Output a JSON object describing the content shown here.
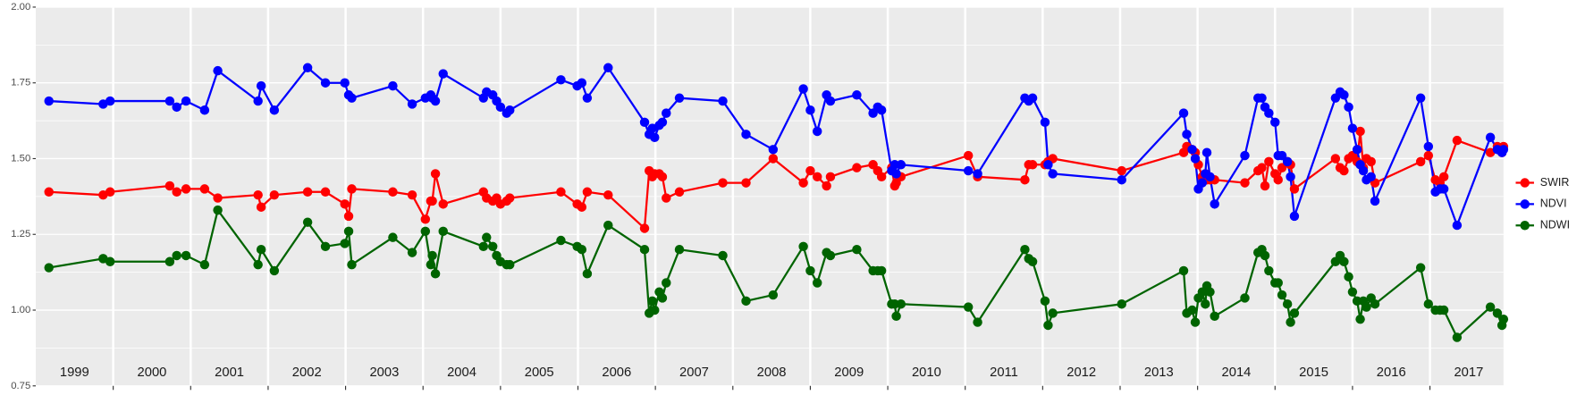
{
  "chart_data": {
    "type": "line",
    "x": [
      1999.17,
      1999.87,
      1999.96,
      2000.73,
      2000.82,
      2000.94,
      2001.18,
      2001.35,
      2001.87,
      2001.91,
      2002.08,
      2002.51,
      2002.74,
      2002.99,
      2003.04,
      2003.08,
      2003.61,
      2003.86,
      2004.03,
      2004.1,
      2004.12,
      2004.16,
      2004.26,
      2004.78,
      2004.82,
      2004.9,
      2004.95,
      2005.0,
      2005.08,
      2005.12,
      2005.78,
      2005.99,
      2006.05,
      2006.12,
      2006.39,
      2006.86,
      2006.92,
      2006.96,
      2006.99,
      2007.05,
      2007.09,
      2007.14,
      2007.31,
      2007.87,
      2008.17,
      2008.52,
      2008.91,
      2009.0,
      2009.09,
      2009.21,
      2009.26,
      2009.6,
      2009.81,
      2009.87,
      2009.92,
      2010.05,
      2010.09,
      2010.11,
      2010.17,
      2011.04,
      2011.16,
      2011.77,
      2011.82,
      2011.87,
      2012.03,
      2012.07,
      2012.13,
      2013.02,
      2013.82,
      2013.86,
      2013.93,
      2013.97,
      2014.01,
      2014.06,
      2014.1,
      2014.12,
      2014.16,
      2014.22,
      2014.61,
      2014.78,
      2014.83,
      2014.87,
      2014.92,
      2015.0,
      2015.04,
      2015.09,
      2015.16,
      2015.2,
      2015.25,
      2015.78,
      2015.84,
      2015.89,
      2015.95,
      2016.0,
      2016.06,
      2016.1,
      2016.14,
      2016.18,
      2016.24,
      2016.29,
      2016.88,
      2016.98,
      2017.07,
      2017.13,
      2017.18,
      2017.35,
      2017.78,
      2017.87,
      2017.93,
      2017.95
    ],
    "series": [
      {
        "name": "SWIR",
        "color": "#ff0000",
        "values": [
          1.39,
          1.38,
          1.39,
          1.41,
          1.39,
          1.4,
          1.4,
          1.37,
          1.38,
          1.34,
          1.38,
          1.39,
          1.39,
          1.35,
          1.31,
          1.4,
          1.39,
          1.38,
          1.3,
          1.36,
          1.36,
          1.45,
          1.35,
          1.39,
          1.37,
          1.36,
          1.37,
          1.35,
          1.36,
          1.37,
          1.39,
          1.35,
          1.34,
          1.39,
          1.38,
          1.27,
          1.46,
          1.44,
          1.45,
          1.45,
          1.44,
          1.37,
          1.39,
          1.42,
          1.42,
          1.5,
          1.42,
          1.46,
          1.44,
          1.41,
          1.44,
          1.47,
          1.48,
          1.46,
          1.44,
          1.47,
          1.41,
          1.42,
          1.44,
          1.51,
          1.44,
          1.43,
          1.48,
          1.48,
          1.48,
          1.49,
          1.5,
          1.46,
          1.52,
          1.54,
          1.53,
          1.52,
          1.48,
          1.44,
          1.45,
          1.43,
          1.43,
          1.43,
          1.42,
          1.46,
          1.47,
          1.41,
          1.49,
          1.45,
          1.43,
          1.47,
          1.49,
          1.48,
          1.4,
          1.5,
          1.47,
          1.46,
          1.5,
          1.51,
          1.49,
          1.59,
          1.47,
          1.5,
          1.49,
          1.42,
          1.49,
          1.51,
          1.43,
          1.42,
          1.44,
          1.56,
          1.52,
          1.54,
          1.52,
          1.54
        ]
      },
      {
        "name": "NDVI",
        "color": "#0000ff",
        "values": [
          1.69,
          1.68,
          1.69,
          1.69,
          1.67,
          1.69,
          1.66,
          1.79,
          1.69,
          1.74,
          1.66,
          1.8,
          1.75,
          1.75,
          1.71,
          1.7,
          1.74,
          1.68,
          1.7,
          1.71,
          1.7,
          1.69,
          1.78,
          1.7,
          1.72,
          1.71,
          1.69,
          1.67,
          1.65,
          1.66,
          1.76,
          1.74,
          1.75,
          1.7,
          1.8,
          1.62,
          1.58,
          1.6,
          1.57,
          1.61,
          1.62,
          1.65,
          1.7,
          1.69,
          1.58,
          1.53,
          1.73,
          1.66,
          1.59,
          1.71,
          1.69,
          1.71,
          1.65,
          1.67,
          1.66,
          1.46,
          1.48,
          1.45,
          1.48,
          1.46,
          1.45,
          1.7,
          1.69,
          1.7,
          1.62,
          1.48,
          1.45,
          1.43,
          1.65,
          1.58,
          1.53,
          1.5,
          1.4,
          1.42,
          1.45,
          1.52,
          1.44,
          1.35,
          1.51,
          1.7,
          1.7,
          1.67,
          1.65,
          1.62,
          1.51,
          1.51,
          1.49,
          1.44,
          1.31,
          1.7,
          1.72,
          1.71,
          1.67,
          1.6,
          1.53,
          1.48,
          1.46,
          1.43,
          1.44,
          1.36,
          1.7,
          1.54,
          1.39,
          1.4,
          1.4,
          1.28,
          1.57,
          1.53,
          1.52,
          1.53
        ]
      },
      {
        "name": "NDWI",
        "color": "#006400",
        "values": [
          1.14,
          1.17,
          1.16,
          1.16,
          1.18,
          1.18,
          1.15,
          1.33,
          1.15,
          1.2,
          1.13,
          1.29,
          1.21,
          1.22,
          1.26,
          1.15,
          1.24,
          1.19,
          1.26,
          1.15,
          1.18,
          1.12,
          1.26,
          1.21,
          1.24,
          1.21,
          1.18,
          1.16,
          1.15,
          1.15,
          1.23,
          1.21,
          1.2,
          1.12,
          1.28,
          1.2,
          0.99,
          1.03,
          1.0,
          1.06,
          1.04,
          1.09,
          1.2,
          1.18,
          1.03,
          1.05,
          1.21,
          1.13,
          1.09,
          1.19,
          1.18,
          1.2,
          1.13,
          1.13,
          1.13,
          1.02,
          1.02,
          0.98,
          1.02,
          1.01,
          0.96,
          1.2,
          1.17,
          1.16,
          1.03,
          0.95,
          0.99,
          1.02,
          1.13,
          0.99,
          1.0,
          0.96,
          1.04,
          1.06,
          1.02,
          1.08,
          1.06,
          0.98,
          1.04,
          1.19,
          1.2,
          1.18,
          1.13,
          1.09,
          1.09,
          1.05,
          1.02,
          0.96,
          0.99,
          1.16,
          1.18,
          1.16,
          1.11,
          1.06,
          1.03,
          0.97,
          1.03,
          1.01,
          1.04,
          1.02,
          1.14,
          1.02,
          1.0,
          1.0,
          1.0,
          0.91,
          1.01,
          0.99,
          0.95,
          0.97
        ]
      }
    ],
    "xlim": [
      1999.0,
      2017.95
    ],
    "xticks": [
      2000,
      2001,
      2002,
      2003,
      2004,
      2005,
      2006,
      2007,
      2008,
      2009,
      2010,
      2011,
      2012,
      2013,
      2014,
      2015,
      2016,
      2017
    ],
    "year_labels": [
      1999,
      2000,
      2001,
      2002,
      2003,
      2004,
      2005,
      2006,
      2007,
      2008,
      2009,
      2010,
      2011,
      2012,
      2013,
      2014,
      2015,
      2016,
      2017
    ],
    "ylim": [
      0.75,
      2.0
    ],
    "yticks": [
      {
        "value": 0.75,
        "label": "0.75"
      },
      {
        "value": 1.0,
        "label": "1.00"
      },
      {
        "value": 1.25,
        "label": "1.25"
      },
      {
        "value": 1.5,
        "label": "1.50"
      },
      {
        "value": 1.75,
        "label": "1.75"
      },
      {
        "value": 2.0,
        "label": "2.00"
      }
    ],
    "grid": true,
    "legend": "right"
  }
}
